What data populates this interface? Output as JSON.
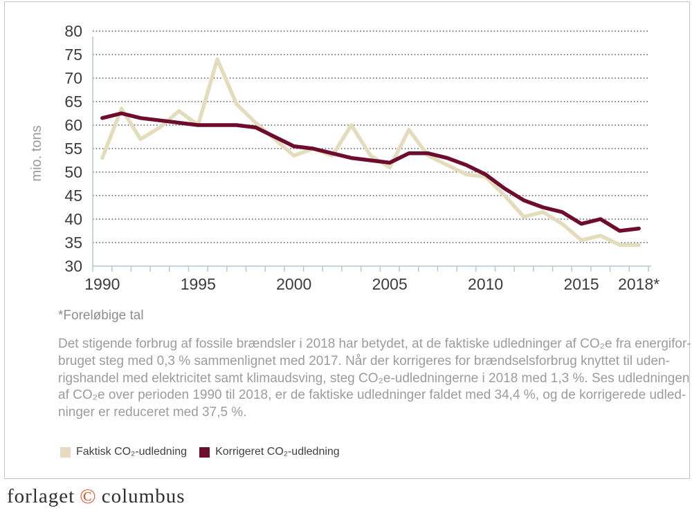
{
  "chart_data": {
    "type": "line",
    "title": "",
    "xlabel": "",
    "ylabel": "mio. tons",
    "ylim": [
      30,
      80
    ],
    "ytick_step": 5,
    "yticks": [
      80,
      75,
      70,
      65,
      60,
      55,
      50,
      45,
      40,
      35,
      30
    ],
    "grid": "horizontal-dotted",
    "legend_position": "bottom-left",
    "x": [
      1990,
      1991,
      1992,
      1993,
      1994,
      1995,
      1996,
      1997,
      1998,
      1999,
      2000,
      2001,
      2002,
      2003,
      2004,
      2005,
      2006,
      2007,
      2008,
      2009,
      2010,
      2011,
      2012,
      2013,
      2014,
      2015,
      2016,
      2017,
      2018
    ],
    "xtick_labels": [
      {
        "year": 1990,
        "label": "1990"
      },
      {
        "year": 1995,
        "label": "1995"
      },
      {
        "year": 2000,
        "label": "2000"
      },
      {
        "year": 2005,
        "label": "2005"
      },
      {
        "year": 2010,
        "label": "2010"
      },
      {
        "year": 2015,
        "label": "2015"
      },
      {
        "year": 2018,
        "label": "2018*"
      }
    ],
    "series": [
      {
        "name": "Faktisk CO₂-udledning",
        "color": "#e3ddbd",
        "values": [
          53,
          63.5,
          57,
          59.5,
          63,
          60,
          74,
          64.5,
          60.5,
          57,
          53.5,
          55,
          53.5,
          60,
          53.5,
          51,
          59,
          53.5,
          51.5,
          49.5,
          49,
          45,
          40.5,
          41.5,
          39,
          35.5,
          36.5,
          34.5,
          34.5
        ]
      },
      {
        "name": "Korrigeret CO₂-udledning",
        "color": "#6e0c30",
        "values": [
          61.5,
          62.5,
          61.5,
          61,
          60.5,
          60,
          60,
          60,
          59.5,
          57.5,
          55.5,
          55,
          54,
          53,
          52.5,
          52,
          54,
          54,
          53,
          51.5,
          49.5,
          46.5,
          44,
          42.5,
          41.5,
          39,
          40,
          37.5,
          38
        ]
      }
    ],
    "axis_color": "#b7c5cd",
    "gridline_color": "#5a5a5a",
    "tick_label_color": "#3c3c3c",
    "ylabel_color": "#9a9a9a"
  },
  "footnote": "*Foreløbige tal",
  "paragraph": {
    "lines": [
      "Det stigende forbrug af fossile brændsler i 2018 har betydet, at de faktiske udledninger af CO₂e fra energifor-",
      "bruget steg med 0,3 % sammenlignet med 2017. Når der korrigeres for brændselsforbrug knyttet til uden-",
      "rigshandel med elektricitet samt klimaudsving, steg CO₂e-udledningerne i 2018 med 1,3 %. Ses udledningen",
      "af CO₂e over perioden 1990 til 2018, er de faktiske udledninger faldet med 34,4 %, og de korrigerede udled-",
      "ninger er reduceret med 37,5 %."
    ]
  },
  "legend": {
    "items": [
      {
        "label": "Faktisk CO₂-udledning",
        "color": "#e3ddbd"
      },
      {
        "label": "Korrigeret CO₂-udledning",
        "color": "#6e0c30"
      }
    ]
  },
  "logo": {
    "prefix": "forlaget",
    "copyright": "©",
    "suffix": "columbus",
    "accent_color": "#e2502d"
  }
}
